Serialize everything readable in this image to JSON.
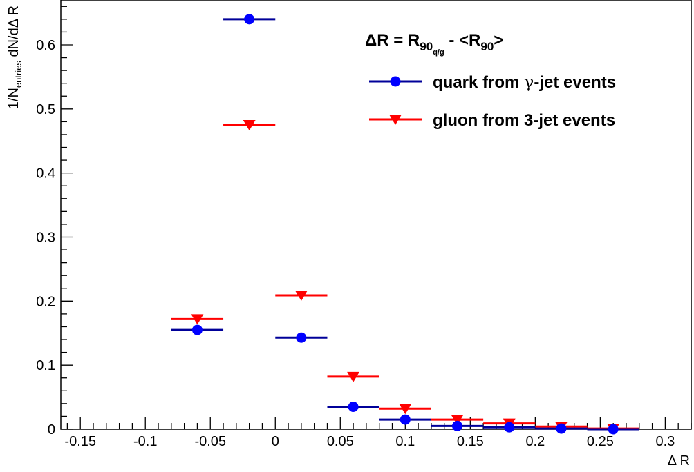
{
  "chart_data": {
    "type": "scatter",
    "title": "",
    "xlabel": "Δ R",
    "ylabel": {
      "pre": "1/N",
      "sub": "entries",
      "post": " dN/dΔ R"
    },
    "xlim": [
      -0.165,
      0.32
    ],
    "ylim": [
      0,
      0.67
    ],
    "bin_half_width": 0.02,
    "x_ticks": [
      {
        "value": -0.15,
        "label": "-0.15"
      },
      {
        "value": -0.1,
        "label": "-0.1"
      },
      {
        "value": -0.05,
        "label": "-0.05"
      },
      {
        "value": 0,
        "label": "0"
      },
      {
        "value": 0.05,
        "label": "0.05"
      },
      {
        "value": 0.1,
        "label": "0.1"
      },
      {
        "value": 0.15,
        "label": "0.15"
      },
      {
        "value": 0.2,
        "label": "0.2"
      },
      {
        "value": 0.25,
        "label": "0.25"
      },
      {
        "value": 0.3,
        "label": "0.3"
      }
    ],
    "y_ticks": [
      {
        "value": 0,
        "label": "0"
      },
      {
        "value": 0.1,
        "label": "0.1"
      },
      {
        "value": 0.2,
        "label": "0.2"
      },
      {
        "value": 0.3,
        "label": "0.3"
      },
      {
        "value": 0.4,
        "label": "0.4"
      },
      {
        "value": 0.5,
        "label": "0.5"
      },
      {
        "value": 0.6,
        "label": "0.6"
      }
    ],
    "legend_title": {
      "a": "ΔR = R",
      "sub": "90",
      "subsub": "q/g",
      "b": " - <R",
      "sub2": "90",
      "c": ">"
    },
    "legend_position": "top-right",
    "series": [
      {
        "name": "quark from γ-jet events",
        "name_parts": {
          "a": "quark from ",
          "greek": "γ",
          "b": "-jet events"
        },
        "color": "#0000ff",
        "line_color": "#000099",
        "marker": "circle",
        "x": [
          -0.06,
          -0.02,
          0.02,
          0.06,
          0.1,
          0.14,
          0.18,
          0.22,
          0.26
        ],
        "y": [
          0.155,
          0.64,
          0.143,
          0.035,
          0.015,
          0.005,
          0.003,
          0.001,
          0.0
        ]
      },
      {
        "name": "gluon from 3-jet events",
        "name_parts": {
          "a": "gluon from 3-jet events"
        },
        "color": "#ff0000",
        "line_color": "#ff0000",
        "marker": "triangle-down",
        "x": [
          -0.06,
          -0.02,
          0.02,
          0.06,
          0.1,
          0.14,
          0.18,
          0.22,
          0.26
        ],
        "y": [
          0.172,
          0.475,
          0.209,
          0.082,
          0.032,
          0.015,
          0.009,
          0.004,
          0.001
        ]
      }
    ]
  }
}
